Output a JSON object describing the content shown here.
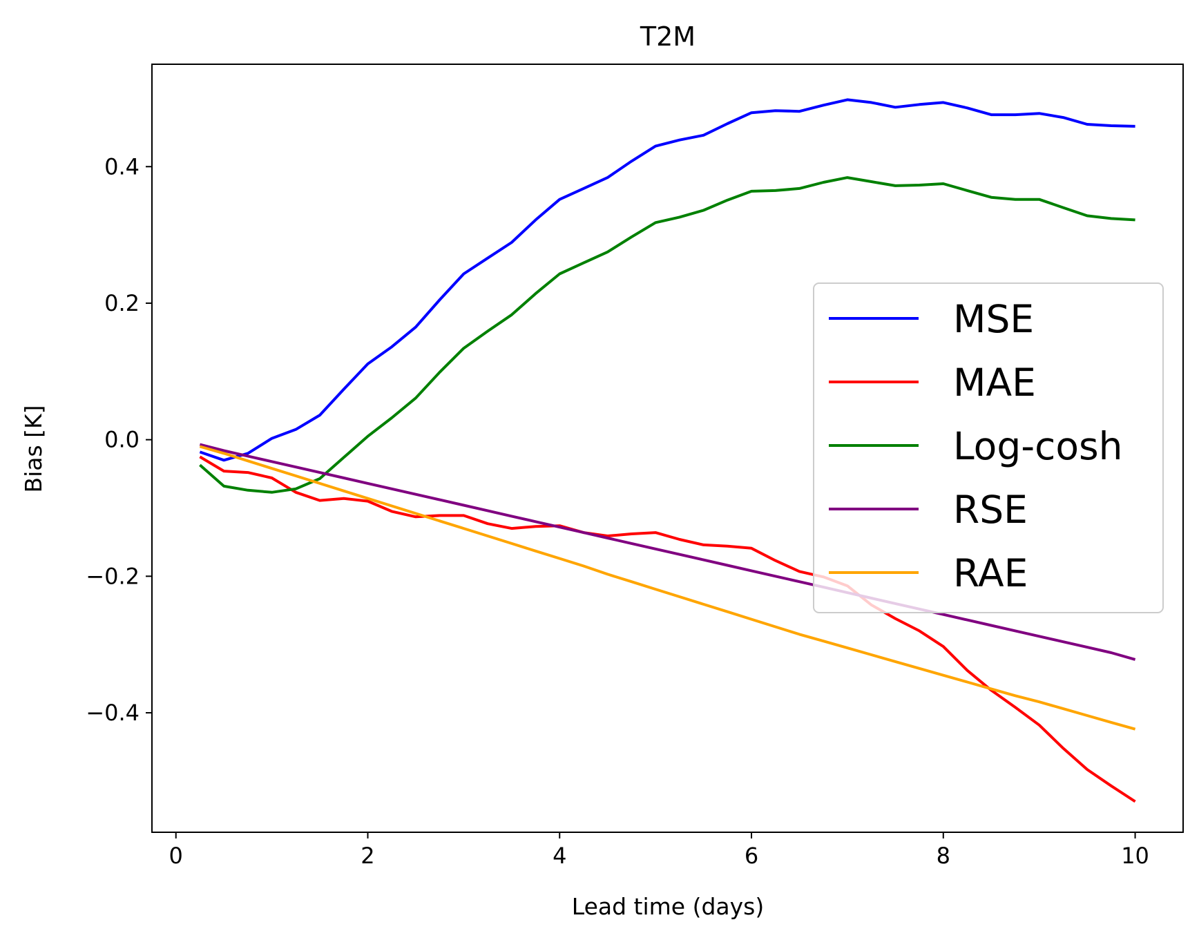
{
  "chart_data": {
    "type": "line",
    "title": "T2M",
    "xlabel": "Lead time (days)",
    "ylabel": "Bias [K]",
    "xlim": [
      -0.25,
      10.5
    ],
    "ylim": [
      -0.575,
      0.55
    ],
    "xticks": [
      0,
      2,
      4,
      6,
      8,
      10
    ],
    "yticks": [
      -0.4,
      -0.2,
      0.0,
      0.2,
      0.4
    ],
    "xtick_labels": [
      "0",
      "2",
      "4",
      "6",
      "8",
      "10"
    ],
    "ytick_labels": [
      "−0.4",
      "−0.2",
      "0.0",
      "0.2",
      "0.4"
    ],
    "grid": false,
    "legend_position": "center-right",
    "x": [
      0.25,
      0.5,
      0.75,
      1.0,
      1.25,
      1.5,
      1.75,
      2.0,
      2.25,
      2.5,
      2.75,
      3.0,
      3.25,
      3.5,
      3.75,
      4.0,
      4.25,
      4.5,
      4.75,
      5.0,
      5.25,
      5.5,
      5.75,
      6.0,
      6.25,
      6.5,
      6.75,
      7.0,
      7.25,
      7.5,
      7.75,
      8.0,
      8.25,
      8.5,
      8.75,
      9.0,
      9.25,
      9.5,
      9.75,
      10.0
    ],
    "series": [
      {
        "name": "MSE",
        "color": "#0000ff",
        "values": [
          -0.018,
          -0.03,
          -0.02,
          0.002,
          0.015,
          0.036,
          0.074,
          0.111,
          0.136,
          0.165,
          0.205,
          0.243,
          0.266,
          0.289,
          0.322,
          0.352,
          0.368,
          0.384,
          0.408,
          0.43,
          0.439,
          0.446,
          0.463,
          0.479,
          0.482,
          0.481,
          0.49,
          0.498,
          0.494,
          0.487,
          0.491,
          0.494,
          0.486,
          0.476,
          0.476,
          0.478,
          0.472,
          0.462,
          0.46,
          0.459
        ]
      },
      {
        "name": "MAE",
        "color": "#ff0000",
        "values": [
          -0.025,
          -0.046,
          -0.048,
          -0.056,
          -0.077,
          -0.089,
          -0.086,
          -0.09,
          -0.105,
          -0.113,
          -0.111,
          -0.111,
          -0.123,
          -0.13,
          -0.127,
          -0.126,
          -0.136,
          -0.141,
          -0.138,
          -0.136,
          -0.146,
          -0.154,
          -0.156,
          -0.159,
          -0.177,
          -0.193,
          -0.201,
          -0.214,
          -0.242,
          -0.262,
          -0.28,
          -0.303,
          -0.338,
          -0.367,
          -0.392,
          -0.418,
          -0.452,
          -0.483,
          -0.507,
          -0.53
        ]
      },
      {
        "name": "Log-cosh",
        "color": "#008000",
        "values": [
          -0.037,
          -0.068,
          -0.074,
          -0.077,
          -0.072,
          -0.057,
          -0.026,
          0.005,
          0.032,
          0.061,
          0.099,
          0.134,
          0.159,
          0.183,
          0.214,
          0.243,
          0.259,
          0.275,
          0.297,
          0.318,
          0.326,
          0.336,
          0.351,
          0.364,
          0.365,
          0.368,
          0.377,
          0.384,
          0.378,
          0.372,
          0.373,
          0.375,
          0.365,
          0.355,
          0.352,
          0.352,
          0.34,
          0.328,
          0.324,
          0.322
        ]
      },
      {
        "name": "RSE",
        "color": "#800080",
        "values": [
          -0.007,
          -0.016,
          -0.024,
          -0.032,
          -0.04,
          -0.048,
          -0.056,
          -0.064,
          -0.072,
          -0.08,
          -0.088,
          -0.096,
          -0.104,
          -0.112,
          -0.12,
          -0.128,
          -0.136,
          -0.144,
          -0.152,
          -0.16,
          -0.168,
          -0.176,
          -0.184,
          -0.192,
          -0.2,
          -0.208,
          -0.216,
          -0.224,
          -0.232,
          -0.24,
          -0.248,
          -0.256,
          -0.264,
          -0.272,
          -0.28,
          -0.288,
          -0.296,
          -0.304,
          -0.312,
          -0.322
        ]
      },
      {
        "name": "RAE",
        "color": "#ffa500",
        "values": [
          -0.01,
          -0.02,
          -0.031,
          -0.042,
          -0.053,
          -0.064,
          -0.075,
          -0.086,
          -0.097,
          -0.108,
          -0.119,
          -0.13,
          -0.141,
          -0.152,
          -0.163,
          -0.174,
          -0.185,
          -0.197,
          -0.208,
          -0.219,
          -0.23,
          -0.241,
          -0.252,
          -0.263,
          -0.274,
          -0.285,
          -0.295,
          -0.305,
          -0.315,
          -0.325,
          -0.335,
          -0.345,
          -0.355,
          -0.365,
          -0.375,
          -0.384,
          -0.394,
          -0.404,
          -0.414,
          -0.424
        ]
      }
    ]
  }
}
